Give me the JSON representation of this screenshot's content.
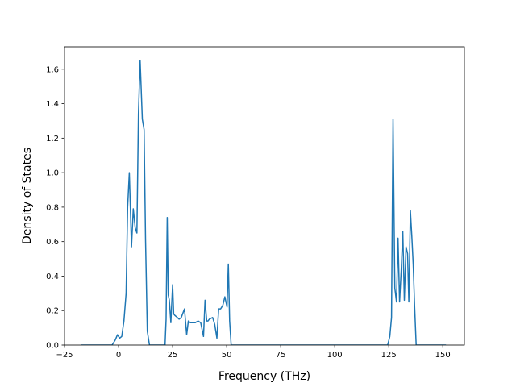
{
  "chart_data": {
    "type": "line",
    "title": "",
    "xlabel": "Frequency (THz)",
    "ylabel": "Density of States",
    "xlim": [
      -25,
      160
    ],
    "ylim": [
      0.0,
      1.73
    ],
    "xticks": [
      -25,
      0,
      25,
      50,
      75,
      100,
      125,
      150
    ],
    "xtick_labels": [
      "−25",
      "0",
      "25",
      "50",
      "75",
      "100",
      "125",
      "150"
    ],
    "yticks": [
      0.0,
      0.2,
      0.4,
      0.6,
      0.8,
      1.0,
      1.2,
      1.4,
      1.6
    ],
    "ytick_labels": [
      "0.0",
      "0.2",
      "0.4",
      "0.6",
      "0.8",
      "1.0",
      "1.2",
      "1.4",
      "1.6"
    ],
    "grid": false,
    "legend": "none",
    "line_color": "#1f77b4",
    "series": [
      {
        "x": [
          -17.5,
          -3.0,
          -1.5,
          -0.5,
          0.5,
          1.5,
          2.5,
          3.5,
          4.2,
          5.0,
          6.0,
          6.8,
          7.7,
          8.5,
          9.2,
          10.0,
          11.0,
          11.8,
          12.5,
          13.3,
          14.3,
          21.5,
          22.0,
          22.5,
          23.0,
          23.5,
          24.2,
          25.0,
          25.5,
          26.2,
          27.2,
          28.0,
          29.0,
          30.5,
          31.5,
          32.3,
          33.2,
          34.2,
          35.5,
          36.8,
          38.0,
          39.3,
          40.0,
          40.8,
          41.4,
          42.0,
          43.5,
          44.5,
          45.5,
          46.3,
          47.2,
          48.2,
          49.2,
          50.2,
          50.8,
          51.4,
          52.1,
          52.6,
          124.5,
          125.5,
          126.3,
          127.0,
          127.8,
          128.6,
          129.3,
          130.0,
          130.8,
          131.5,
          132.2,
          133.0,
          133.7,
          134.3,
          135.0,
          135.7,
          136.3,
          137.0,
          137.7,
          138.3,
          151.5
        ],
        "y": [
          0.0,
          0.0,
          0.03,
          0.06,
          0.04,
          0.05,
          0.14,
          0.3,
          0.8,
          1.0,
          0.57,
          0.79,
          0.68,
          0.65,
          1.34,
          1.65,
          1.31,
          1.25,
          0.61,
          0.08,
          0.0,
          0.0,
          0.15,
          0.74,
          0.29,
          0.26,
          0.13,
          0.35,
          0.18,
          0.17,
          0.16,
          0.15,
          0.16,
          0.21,
          0.06,
          0.14,
          0.13,
          0.13,
          0.13,
          0.14,
          0.13,
          0.05,
          0.26,
          0.14,
          0.14,
          0.15,
          0.16,
          0.12,
          0.04,
          0.21,
          0.21,
          0.23,
          0.28,
          0.22,
          0.47,
          0.14,
          0.0,
          0.0,
          0.0,
          0.05,
          0.16,
          1.31,
          0.33,
          0.25,
          0.62,
          0.25,
          0.44,
          0.66,
          0.26,
          0.57,
          0.53,
          0.25,
          0.78,
          0.63,
          0.47,
          0.22,
          0.0,
          0.0,
          0.0
        ]
      }
    ]
  }
}
